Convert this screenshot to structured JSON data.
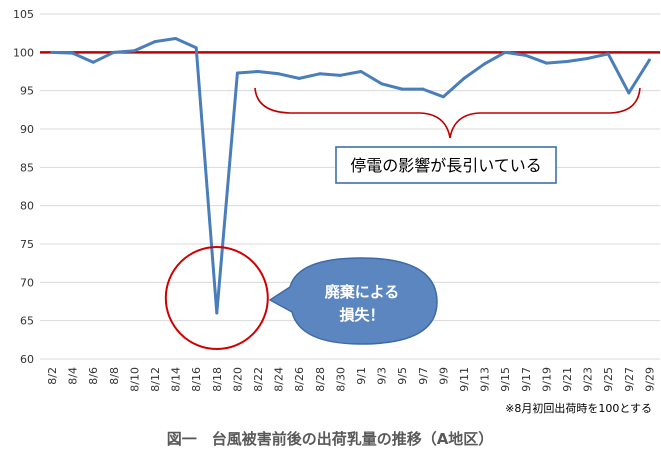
{
  "chart_data": {
    "type": "line",
    "title": "図一　台風被害前後の出荷乳量の推移（A地区）",
    "note": "※8月初回出荷時を100とする",
    "ylim": [
      60,
      105
    ],
    "yticks": [
      60,
      65,
      70,
      75,
      80,
      85,
      90,
      95,
      100,
      105
    ],
    "xtick_labels": [
      "8/2",
      "8/4",
      "8/6",
      "8/8",
      "8/10",
      "8/12",
      "8/14",
      "8/16",
      "8/18",
      "8/20",
      "8/22",
      "8/24",
      "8/26",
      "8/28",
      "8/30",
      "9/1",
      "9/3",
      "9/5",
      "9/7",
      "9/9",
      "9/11",
      "9/13",
      "9/15",
      "9/17",
      "9/19",
      "9/21",
      "9/23",
      "9/25",
      "9/27",
      "9/29"
    ],
    "grid": true,
    "series": [
      {
        "color": "#4a7ebb",
        "points": [
          {
            "x": "8/2",
            "y": 100
          },
          {
            "x": "8/4",
            "y": 99.9
          },
          {
            "x": "8/6",
            "y": 98.7
          },
          {
            "x": "8/8",
            "y": 100
          },
          {
            "x": "8/10",
            "y": 100.2
          },
          {
            "x": "8/12",
            "y": 101.4
          },
          {
            "x": "8/14",
            "y": 101.8
          },
          {
            "x": "8/16",
            "y": 100.6
          },
          {
            "x": "8/18",
            "y": 66
          },
          {
            "x": "8/20",
            "y": 97.3
          },
          {
            "x": "8/22",
            "y": 97.5
          },
          {
            "x": "8/24",
            "y": 97.2
          },
          {
            "x": "8/26",
            "y": 96.6
          },
          {
            "x": "8/28",
            "y": 97.2
          },
          {
            "x": "8/30",
            "y": 97
          },
          {
            "x": "9/1",
            "y": 97.5
          },
          {
            "x": "9/3",
            "y": 95.9
          },
          {
            "x": "9/5",
            "y": 95.2
          },
          {
            "x": "9/7",
            "y": 95.2
          },
          {
            "x": "9/9",
            "y": 94.2
          },
          {
            "x": "9/11",
            "y": 96.6
          },
          {
            "x": "9/13",
            "y": 98.5
          },
          {
            "x": "9/15",
            "y": 100
          },
          {
            "x": "9/17",
            "y": 99.6
          },
          {
            "x": "9/19",
            "y": 98.6
          },
          {
            "x": "9/21",
            "y": 98.8
          },
          {
            "x": "9/23",
            "y": 99.2
          },
          {
            "x": "9/25",
            "y": 99.8
          },
          {
            "x": "9/27",
            "y": 94.7
          },
          {
            "x": "9/29",
            "y": 99
          }
        ]
      }
    ],
    "reference_line": {
      "y": 100,
      "color": "#c00000"
    },
    "annotations": {
      "outage_text": "停電の影響が長引いている",
      "loss_text_line1": "廃棄による",
      "loss_text_line2": "損失！",
      "loss_point_x": "8/18"
    }
  },
  "colors": {
    "line": "#4a7ebb",
    "reference": "#c00000",
    "grid": "#d9d9d9",
    "bubble_fill": "#5b86c0",
    "bubble_stroke": "#3e6aa6",
    "box_border": "#3f6fa8",
    "brace": "#c00000",
    "circle": "#d00000"
  }
}
